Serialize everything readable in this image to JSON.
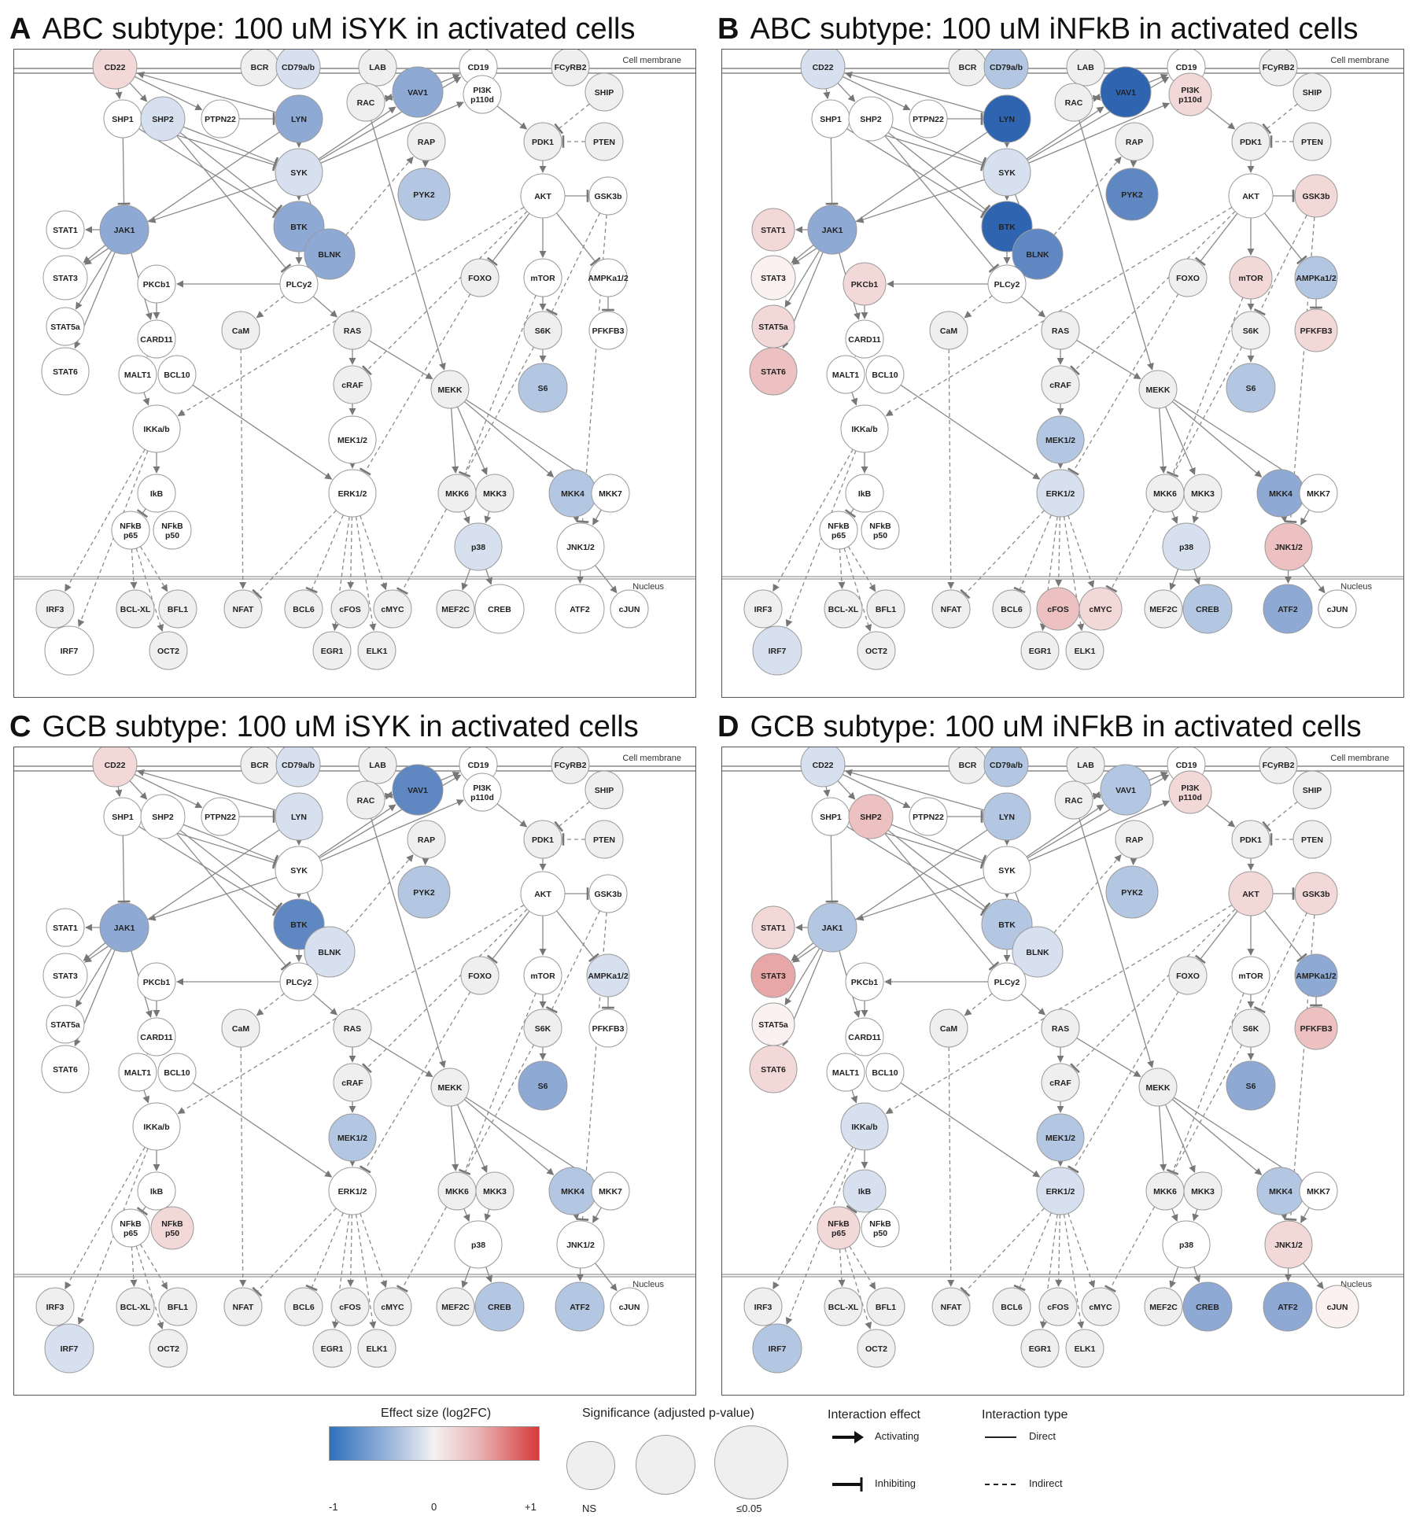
{
  "panels": [
    {
      "letter": "A",
      "title": "ABC subtype: 100 uM iSYK in activated cells",
      "nodes": {
        "CD22": "r1",
        "CD79a/b": "b1",
        "VAV1": "b3",
        "LYN": "b3",
        "SHP2": "b1",
        "SYK": "b1",
        "PYK2": "b2",
        "JAK1": "b3",
        "BTK": "b3",
        "BLNK": "b3",
        "S6": "b2",
        "MKK4": "b2",
        "p38": "b1"
      }
    },
    {
      "letter": "B",
      "title": "ABC subtype: 100 uM iNFkB in activated cells",
      "nodes": {
        "CD22": "b1",
        "CD79a/b": "b2",
        "VAV1": "b5",
        "LYN": "b5",
        "SYK": "b1",
        "PI3K p110d": "r1",
        "PYK2": "b4",
        "GSK3b": "r1",
        "STAT1": "r1",
        "JAK1": "b3",
        "BTK": "b5",
        "BLNK": "b4",
        "STAT3": "r0",
        "PKCb1": "r1",
        "mTOR": "r1",
        "AMPKa1/2": "b2",
        "STAT5a": "r1",
        "PFKFB3": "r1",
        "STAT6": "r2",
        "S6": "b2",
        "MEK1/2": "b2",
        "ERK1/2": "b1",
        "MKK4": "b3",
        "p38": "b1",
        "JNK1/2": "r2",
        "cFOS": "r2",
        "cMYC": "r1",
        "CREB": "b2",
        "ATF2": "b3",
        "IRF7": "b1"
      }
    },
    {
      "letter": "C",
      "title": "GCB subtype: 100 uM iSYK in activated cells",
      "nodes": {
        "CD22": "r1",
        "CD79a/b": "b1",
        "VAV1": "b4",
        "LYN": "b1",
        "PYK2": "b2",
        "JAK1": "b3",
        "BTK": "b4",
        "BLNK": "b1",
        "AMPKa1/2": "b1",
        "S6": "b3",
        "MEK1/2": "b2",
        "MKK4": "b2",
        "NFkB p50": "r1",
        "CREB": "b2",
        "ATF2": "b2",
        "IRF7": "b1"
      }
    },
    {
      "letter": "D",
      "title": "GCB subtype: 100 uM iNFkB in activated cells",
      "nodes": {
        "CD22": "b1",
        "CD79a/b": "b2",
        "VAV1": "b2",
        "SHP2": "r2",
        "LYN": "b2",
        "PI3K p110d": "r1",
        "PYK2": "b2",
        "AKT": "r1",
        "GSK3b": "r1",
        "STAT1": "r1",
        "JAK1": "b2",
        "BTK": "b2",
        "BLNK": "b1",
        "STAT3": "r3",
        "AMPKa1/2": "b3",
        "STAT5a": "r0",
        "PFKFB3": "r2",
        "STAT6": "r1",
        "S6": "b3",
        "IKKa/b": "b1",
        "MEK1/2": "b2",
        "IkB": "b1",
        "ERK1/2": "b1",
        "MKK4": "b2",
        "NFkB p65": "r1",
        "JNK1/2": "r1",
        "CREB": "b3",
        "ATF2": "b3",
        "cJUN": "r0",
        "IRF7": "b2"
      }
    }
  ],
  "diagram": {
    "membrane_label": "Cell membrane",
    "nucleus_label": "Nucleus",
    "node_labels": [
      "CD22",
      "BCR",
      "CD79a/b",
      "LAB",
      "CD19",
      "FCyRB2",
      "VAV1",
      "RAC",
      "PI3K p110d",
      "SHIP",
      "SHP1",
      "SHP2",
      "PTPN22",
      "LYN",
      "RAP",
      "PDK1",
      "PTEN",
      "SYK",
      "PYK2",
      "AKT",
      "GSK3b",
      "STAT1",
      "JAK1",
      "BTK",
      "BLNK",
      "STAT3",
      "PKCb1",
      "PLCy2",
      "FOXO",
      "mTOR",
      "AMPKa1/2",
      "STAT5a",
      "CARD11",
      "CaM",
      "RAS",
      "S6K",
      "PFKFB3",
      "STAT6",
      "MALT1",
      "BCL10",
      "cRAF",
      "MEKK",
      "S6",
      "IKKa/b",
      "MEK1/2",
      "IkB",
      "ERK1/2",
      "MKK6",
      "MKK3",
      "MKK4",
      "MKK7",
      "NFkB p65",
      "NFkB p50",
      "p38",
      "JNK1/2",
      "IRF3",
      "BCL-XL",
      "BFL1",
      "NFAT",
      "BCL6",
      "cFOS",
      "cMYC",
      "MEF2C",
      "CREB",
      "ATF2",
      "cJUN",
      "IRF7",
      "OCT2",
      "EGR1",
      "ELK1"
    ]
  },
  "colors": {
    "b1": "#d6e0ee",
    "b2": "#b4c7e2",
    "b3": "#8ea9d3",
    "b4": "#5f87c2",
    "b5": "#2f65b0",
    "r0": "#fbf1f1",
    "r1": "#f3d8d8",
    "r2": "#edc1c1",
    "r3": "#e7a7a7"
  },
  "legend": {
    "effect_title": "Effect size (log2FC)",
    "effect_ticks": [
      "-1",
      "0",
      "+1"
    ],
    "significance_title": "Significance (adjusted p-value)",
    "significance_ticks": [
      "NS",
      "≤0.05"
    ],
    "interaction_effect_title": "Interaction effect",
    "activating": "Activating",
    "inhibiting": "Inhibiting",
    "interaction_type_title": "Interaction type",
    "direct": "Direct",
    "indirect": "Indirect"
  }
}
